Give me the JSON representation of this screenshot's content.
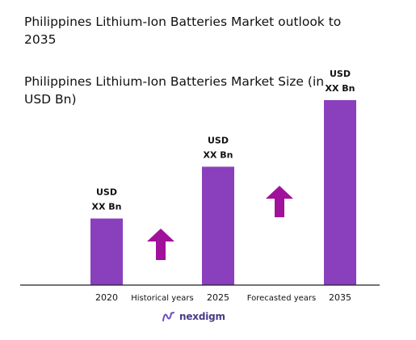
{
  "title": "Philippines Lithium-Ion Batteries Market outlook to 2035",
  "brand": {
    "name": "nexdigm",
    "icon": "nexdigm-logo-icon"
  },
  "colors": {
    "bar": "#8a3fbd",
    "arrow": "#a0129c",
    "axis": "#222222"
  },
  "chart_data": {
    "type": "bar",
    "title": "Philippines Lithium-Ion Batteries Market Size (in USD Bn)",
    "xlabel": "",
    "ylabel": "",
    "categories": [
      "2020",
      "2025",
      "2035"
    ],
    "values": [
      0.36,
      0.64,
      1.0
    ],
    "data_labels": [
      [
        "USD",
        "XX Bn"
      ],
      [
        "USD",
        "XX Bn"
      ],
      [
        "USD",
        "XX Bn"
      ]
    ],
    "periods": [
      "Historical years",
      "Forecasted years"
    ],
    "ylim": [
      0,
      1
    ],
    "grid": false,
    "legend": "none"
  }
}
